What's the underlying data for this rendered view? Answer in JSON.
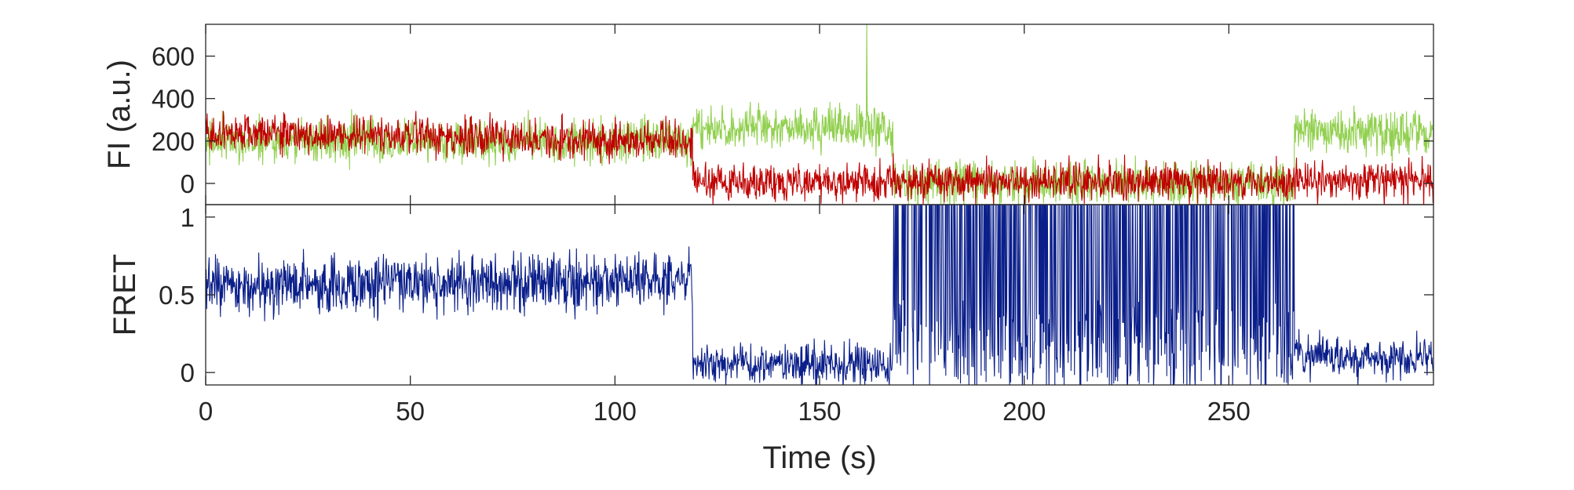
{
  "chart_data": [
    {
      "type": "line",
      "panel": "top",
      "ylabel": "FI (a.u.)",
      "xlabel": "",
      "xlim": [
        0,
        300
      ],
      "ylim": [
        -100,
        750
      ],
      "yticks": [
        0,
        200,
        400,
        600
      ],
      "grid": false,
      "series": [
        {
          "color": "#92d050",
          "noise": 75,
          "segments": [
            {
              "x0": 0,
              "x1": 119,
              "y0": 200,
              "y1": 200
            },
            {
              "x0": 119,
              "x1": 168,
              "y0": 260,
              "y1": 260
            },
            {
              "x0": 168,
              "x1": 266,
              "y0": 0,
              "y1": 0
            },
            {
              "x0": 266,
              "x1": 300,
              "y0": 240,
              "y1": 240
            }
          ],
          "spikes": [
            {
              "x": 161.5,
              "y": 750
            }
          ]
        },
        {
          "color": "#c00000",
          "noise": 65,
          "segments": [
            {
              "x0": 0,
              "x1": 119,
              "y0": 240,
              "y1": 200
            },
            {
              "x0": 119,
              "x1": 300,
              "y0": 10,
              "y1": 10
            }
          ],
          "spikes": []
        }
      ]
    },
    {
      "type": "line",
      "panel": "bottom",
      "ylabel": "FRET",
      "xlabel": "Time (s)",
      "xlim": [
        0,
        300
      ],
      "ylim": [
        -0.08,
        1.08
      ],
      "yticks": [
        0,
        0.5,
        1
      ],
      "xticks": [
        0,
        50,
        100,
        150,
        200,
        250
      ],
      "grid": false,
      "series": [
        {
          "color": "#0b1f8a",
          "segments": [
            {
              "x0": 0,
              "x1": 119,
              "y0": 0.55,
              "y1": 0.6,
              "noise": 0.13
            },
            {
              "x0": 119,
              "x1": 168,
              "y0": 0.05,
              "y1": 0.05,
              "noise": 0.09
            },
            {
              "x0": 168,
              "x1": 266,
              "y0": 0.5,
              "y1": 0.5,
              "noise": 0.9
            },
            {
              "x0": 266,
              "x1": 300,
              "y0": 0.1,
              "y1": 0.1,
              "noise": 0.09
            }
          ]
        }
      ]
    }
  ]
}
